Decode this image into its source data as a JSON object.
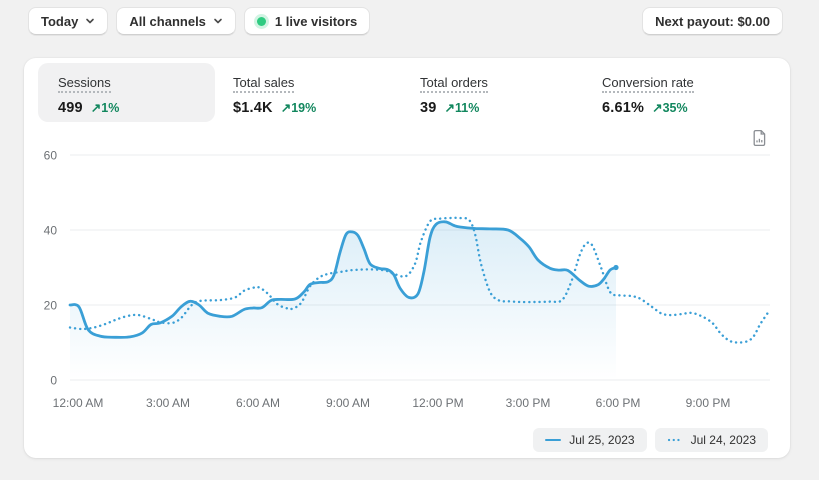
{
  "topbar": {
    "date_range_label": "Today",
    "channel_label": "All channels",
    "live_visitors_label": "1 live visitors",
    "next_payout_label": "Next payout: $0.00"
  },
  "metrics": [
    {
      "label": "Sessions",
      "value": "499",
      "arrow": "↗",
      "delta": "1%",
      "selected": true
    },
    {
      "label": "Total sales",
      "value": "$1.4K",
      "arrow": "↗",
      "delta": "19%",
      "selected": false
    },
    {
      "label": "Total orders",
      "value": "39",
      "arrow": "↗",
      "delta": "11%",
      "selected": false
    },
    {
      "label": "Conversion rate",
      "value": "6.61%",
      "arrow": "↗",
      "delta": "35%",
      "selected": false
    }
  ],
  "colors": {
    "accent_blue": "#3a9fd6",
    "delta_green": "#12875e",
    "live_green": "#2fcb81",
    "grid_gray": "#ebedef",
    "axis_text": "#6d7175",
    "page_background": "#f1f1f1"
  },
  "chart_data": {
    "type": "line",
    "x_unit": "hour_of_day",
    "ylim": [
      0,
      60
    ],
    "yticks": [
      0,
      20,
      40,
      60
    ],
    "xticks": [
      "12:00 AM",
      "3:00 AM",
      "6:00 AM",
      "9:00 AM",
      "12:00 PM",
      "3:00 PM",
      "6:00 PM",
      "9:00 PM"
    ],
    "xtick_hours": [
      0,
      3,
      6,
      9,
      12,
      15,
      18,
      21
    ],
    "grid": true,
    "legend_position": "bottom-right",
    "series": [
      {
        "name": "Jul 25, 2023",
        "style": "solid",
        "area_fill": true,
        "x": [
          0,
          0.3,
          0.6,
          1,
          1.5,
          2,
          2.4,
          2.7,
          3,
          3.4,
          3.7,
          4,
          4.3,
          4.6,
          5,
          5.4,
          5.8,
          6.1,
          6.4,
          6.7,
          7,
          7.5,
          7.8,
          8,
          8.3,
          8.6,
          8.8,
          9,
          9.2,
          9.4,
          9.6,
          9.8,
          10,
          10.3,
          10.6,
          10.8,
          11,
          11.3,
          11.6,
          11.8,
          12,
          12.2,
          12.5,
          12.8,
          13,
          13.5,
          14,
          14.6,
          15,
          15.3,
          15.6,
          16,
          16.3,
          16.6,
          17,
          17.3,
          17.6,
          17.8,
          18,
          18.2
        ],
        "values": [
          20,
          19.5,
          13.5,
          11.7,
          11.4,
          11.5,
          12.5,
          14.8,
          15.2,
          17,
          19.5,
          21,
          20,
          17.8,
          17,
          17,
          18.8,
          19.2,
          19.3,
          21.2,
          21.5,
          21.6,
          23.5,
          25.5,
          26,
          26.2,
          28,
          34,
          38.8,
          39.5,
          38.5,
          35,
          31,
          29.8,
          29.4,
          28,
          24.5,
          22,
          23,
          29,
          38,
          41.5,
          42.2,
          41.2,
          40.8,
          40.4,
          40.3,
          40,
          37.8,
          35.5,
          32,
          29.8,
          29.3,
          29.2,
          26.5,
          25,
          25.4,
          27,
          29.3,
          30
        ]
      },
      {
        "name": "Jul 24, 2023",
        "style": "dotted",
        "area_fill": false,
        "x": [
          0,
          0.4,
          0.8,
          1.2,
          1.6,
          2,
          2.3,
          2.7,
          3,
          3.4,
          3.7,
          4,
          4.2,
          4.5,
          5,
          5.5,
          5.8,
          6.1,
          6.3,
          6.6,
          6.9,
          7.2,
          7.4,
          7.7,
          8,
          8.3,
          8.6,
          9,
          9.4,
          10,
          10.5,
          10.8,
          11.2,
          11.5,
          11.7,
          12,
          12.3,
          12.7,
          13,
          13.3,
          13.5,
          13.7,
          14,
          14.3,
          14.6,
          15,
          15.5,
          16,
          16.4,
          16.7,
          17,
          17.2,
          17.4,
          17.7,
          18,
          18.3,
          18.7,
          19,
          19.4,
          19.7,
          20,
          20.4,
          20.7,
          21,
          21.4,
          21.7,
          22,
          22.3,
          22.6,
          22.8,
          23,
          23.25
        ],
        "values": [
          14,
          13.6,
          14,
          15,
          16.3,
          17.2,
          17.3,
          16.3,
          15.4,
          15.2,
          16.5,
          19.5,
          20.8,
          21.2,
          21.3,
          22,
          23.8,
          24.6,
          24.7,
          23,
          20.3,
          19.2,
          19,
          20.5,
          25,
          27.3,
          28.3,
          28.8,
          29.3,
          29.5,
          29.2,
          28.3,
          27.7,
          31,
          37,
          42.3,
          43,
          43.2,
          43.2,
          42.7,
          39,
          31,
          23.5,
          21.2,
          21,
          20.8,
          20.8,
          20.9,
          21.3,
          26,
          33.5,
          36.3,
          36,
          30,
          23.5,
          22.6,
          22.4,
          21.7,
          19.5,
          17.8,
          17.3,
          17.6,
          17.9,
          17.2,
          15.3,
          12.3,
          10.4,
          10,
          10.4,
          11.8,
          14.8,
          17.8
        ]
      }
    ]
  }
}
